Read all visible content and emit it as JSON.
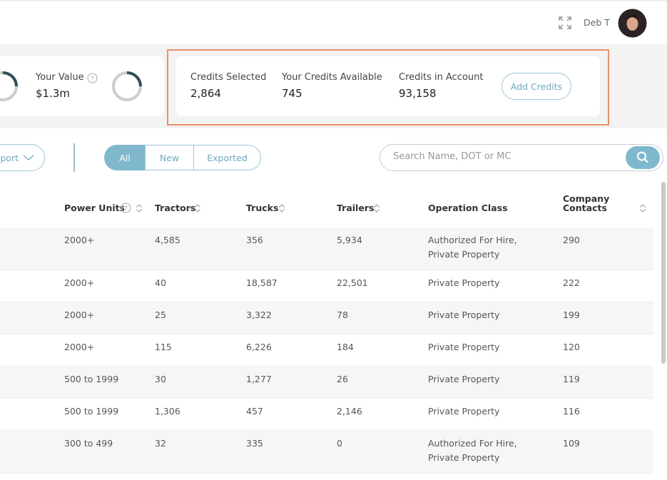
{
  "header": {
    "user": "Deb T"
  },
  "value_card": {
    "label": "Your Value",
    "value": "$1.3m"
  },
  "credits": [
    {
      "label": "Credits Selected",
      "value": "2,864"
    },
    {
      "label": "Your Credits Available",
      "value": "745"
    },
    {
      "label": "Credits in Account",
      "value": "93,158"
    }
  ],
  "add_credits": "Add Credits",
  "toolbar": {
    "export": "Export",
    "filters": [
      "All",
      "New",
      "Exported"
    ],
    "search_placeholder": "Search Name, DOT or MC"
  },
  "table": {
    "columns": [
      "Power Units",
      "Tractors",
      "Trucks",
      "Trailers",
      "Operation Class",
      "Company Contacts"
    ],
    "rows": [
      [
        "2000+",
        "4,585",
        "356",
        "5,934",
        "Authorized For Hire, Private Property",
        "290"
      ],
      [
        "2000+",
        "40",
        "18,587",
        "22,501",
        "Private Property",
        "222"
      ],
      [
        "2000+",
        "25",
        "3,322",
        "78",
        "Private Property",
        "199"
      ],
      [
        "2000+",
        "115",
        "6,226",
        "184",
        "Private Property",
        "120"
      ],
      [
        "500 to 1999",
        "30",
        "1,277",
        "26",
        "Private Property",
        "119"
      ],
      [
        "500 to 1999",
        "1,306",
        "457",
        "2,146",
        "Private Property",
        "116"
      ],
      [
        "300 to 499",
        "32",
        "335",
        "0",
        "Authorized For Hire, Private Property",
        "109"
      ]
    ]
  }
}
